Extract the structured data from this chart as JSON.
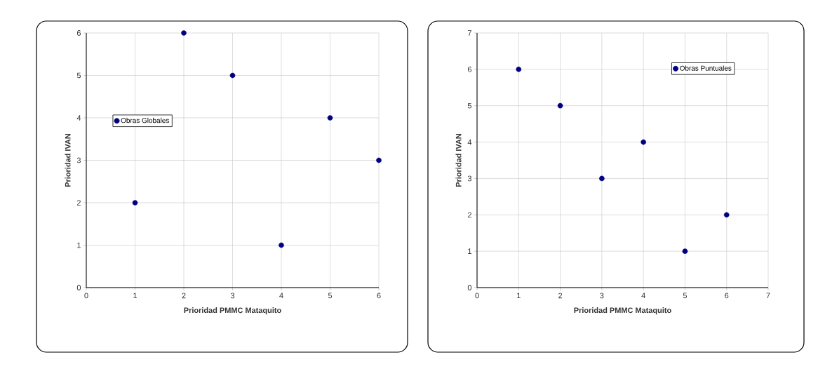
{
  "chart_data": [
    {
      "type": "scatter",
      "xlabel": "Prioridad PMMC Mataquito",
      "ylabel": "Prioridad IVAN",
      "x": [
        1,
        2,
        3,
        4,
        5,
        6
      ],
      "series": [
        {
          "name": "Obras Globales",
          "color": "#000080",
          "values": [
            2,
            6,
            5,
            1,
            4,
            3
          ]
        }
      ],
      "xlim": [
        0,
        6
      ],
      "ylim": [
        0,
        6
      ],
      "xticks": [
        0,
        1,
        2,
        3,
        4,
        5,
        6
      ],
      "yticks": [
        0,
        1,
        2,
        3,
        4,
        5,
        6
      ],
      "grid": true,
      "legend": "left",
      "marker": "circle"
    },
    {
      "type": "scatter",
      "xlabel": "Prioridad PMMC Mataquito",
      "ylabel": "Prioridad IVAN",
      "x": [
        1,
        2,
        3,
        4,
        5,
        6
      ],
      "series": [
        {
          "name": "Obras Puntuales",
          "color": "#000080",
          "values": [
            6,
            5,
            3,
            4,
            1,
            2
          ]
        }
      ],
      "xlim": [
        0,
        7
      ],
      "ylim": [
        0,
        7
      ],
      "xticks": [
        0,
        1,
        2,
        3,
        4,
        5,
        6,
        7
      ],
      "yticks": [
        0,
        1,
        2,
        3,
        4,
        5,
        6,
        7
      ],
      "grid": true,
      "legend": "top right",
      "marker": "circle"
    }
  ]
}
